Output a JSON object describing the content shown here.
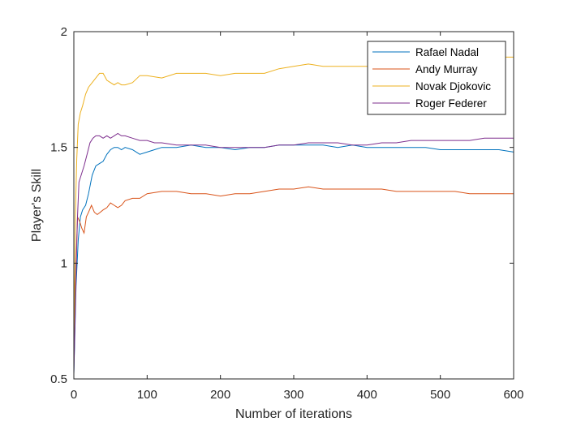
{
  "chart_data": {
    "type": "line",
    "title": "",
    "xlabel": "Number of iterations",
    "ylabel": "Player's Skill",
    "xlim": [
      0,
      600
    ],
    "ylim": [
      0.5,
      2
    ],
    "xticks": [
      0,
      100,
      200,
      300,
      400,
      500,
      600
    ],
    "xtick_labels": [
      "0",
      "100",
      "200",
      "300",
      "400",
      "500",
      "600"
    ],
    "yticks": [
      0.5,
      1,
      1.5,
      2
    ],
    "ytick_labels": [
      "0.5",
      "1",
      "1.5",
      "2"
    ],
    "grid": false,
    "legend_position": "top-right",
    "series": [
      {
        "name": "Rafael Nadal",
        "color": "#0072BD",
        "points": [
          [
            0,
            0.52
          ],
          [
            3,
            0.9
          ],
          [
            6,
            1.1
          ],
          [
            9,
            1.2
          ],
          [
            12,
            1.23
          ],
          [
            16,
            1.25
          ],
          [
            20,
            1.3
          ],
          [
            25,
            1.38
          ],
          [
            30,
            1.42
          ],
          [
            35,
            1.43
          ],
          [
            40,
            1.44
          ],
          [
            45,
            1.47
          ],
          [
            50,
            1.49
          ],
          [
            55,
            1.5
          ],
          [
            60,
            1.5
          ],
          [
            65,
            1.49
          ],
          [
            70,
            1.5
          ],
          [
            80,
            1.49
          ],
          [
            90,
            1.47
          ],
          [
            100,
            1.48
          ],
          [
            110,
            1.49
          ],
          [
            120,
            1.5
          ],
          [
            140,
            1.5
          ],
          [
            160,
            1.51
          ],
          [
            180,
            1.5
          ],
          [
            200,
            1.5
          ],
          [
            220,
            1.49
          ],
          [
            240,
            1.5
          ],
          [
            260,
            1.5
          ],
          [
            280,
            1.51
          ],
          [
            300,
            1.51
          ],
          [
            320,
            1.51
          ],
          [
            340,
            1.51
          ],
          [
            360,
            1.5
          ],
          [
            380,
            1.51
          ],
          [
            400,
            1.5
          ],
          [
            420,
            1.5
          ],
          [
            440,
            1.5
          ],
          [
            460,
            1.5
          ],
          [
            480,
            1.5
          ],
          [
            500,
            1.49
          ],
          [
            520,
            1.49
          ],
          [
            540,
            1.49
          ],
          [
            560,
            1.49
          ],
          [
            580,
            1.49
          ],
          [
            600,
            1.48
          ]
        ]
      },
      {
        "name": "Andy Murray",
        "color": "#D95319",
        "points": [
          [
            0,
            0.6
          ],
          [
            3,
            1.0
          ],
          [
            5,
            1.2
          ],
          [
            8,
            1.18
          ],
          [
            11,
            1.15
          ],
          [
            14,
            1.13
          ],
          [
            17,
            1.2
          ],
          [
            20,
            1.22
          ],
          [
            24,
            1.25
          ],
          [
            28,
            1.22
          ],
          [
            32,
            1.21
          ],
          [
            36,
            1.22
          ],
          [
            40,
            1.23
          ],
          [
            45,
            1.24
          ],
          [
            50,
            1.26
          ],
          [
            55,
            1.25
          ],
          [
            60,
            1.24
          ],
          [
            65,
            1.25
          ],
          [
            70,
            1.27
          ],
          [
            80,
            1.28
          ],
          [
            90,
            1.28
          ],
          [
            100,
            1.3
          ],
          [
            120,
            1.31
          ],
          [
            140,
            1.31
          ],
          [
            160,
            1.3
          ],
          [
            180,
            1.3
          ],
          [
            200,
            1.29
          ],
          [
            220,
            1.3
          ],
          [
            240,
            1.3
          ],
          [
            260,
            1.31
          ],
          [
            280,
            1.32
          ],
          [
            300,
            1.32
          ],
          [
            320,
            1.33
          ],
          [
            340,
            1.32
          ],
          [
            360,
            1.32
          ],
          [
            380,
            1.32
          ],
          [
            400,
            1.32
          ],
          [
            420,
            1.32
          ],
          [
            440,
            1.31
          ],
          [
            460,
            1.31
          ],
          [
            480,
            1.31
          ],
          [
            500,
            1.31
          ],
          [
            520,
            1.31
          ],
          [
            540,
            1.3
          ],
          [
            560,
            1.3
          ],
          [
            580,
            1.3
          ],
          [
            600,
            1.3
          ]
        ]
      },
      {
        "name": "Novak Djokovic",
        "color": "#EDB120",
        "points": [
          [
            0,
            0.55
          ],
          [
            2,
            1.2
          ],
          [
            4,
            1.45
          ],
          [
            6,
            1.6
          ],
          [
            9,
            1.65
          ],
          [
            12,
            1.68
          ],
          [
            16,
            1.73
          ],
          [
            20,
            1.76
          ],
          [
            25,
            1.78
          ],
          [
            30,
            1.8
          ],
          [
            35,
            1.82
          ],
          [
            40,
            1.82
          ],
          [
            45,
            1.79
          ],
          [
            50,
            1.78
          ],
          [
            55,
            1.77
          ],
          [
            60,
            1.78
          ],
          [
            65,
            1.77
          ],
          [
            70,
            1.77
          ],
          [
            80,
            1.78
          ],
          [
            90,
            1.81
          ],
          [
            100,
            1.81
          ],
          [
            120,
            1.8
          ],
          [
            140,
            1.82
          ],
          [
            160,
            1.82
          ],
          [
            180,
            1.82
          ],
          [
            200,
            1.81
          ],
          [
            220,
            1.82
          ],
          [
            240,
            1.82
          ],
          [
            260,
            1.82
          ],
          [
            280,
            1.84
          ],
          [
            300,
            1.85
          ],
          [
            320,
            1.86
          ],
          [
            340,
            1.85
          ],
          [
            360,
            1.85
          ],
          [
            380,
            1.85
          ],
          [
            400,
            1.85
          ],
          [
            420,
            1.84
          ],
          [
            440,
            1.86
          ],
          [
            460,
            1.87
          ],
          [
            480,
            1.88
          ],
          [
            500,
            1.88
          ],
          [
            520,
            1.89
          ],
          [
            540,
            1.89
          ],
          [
            560,
            1.89
          ],
          [
            580,
            1.89
          ],
          [
            600,
            1.89
          ]
        ]
      },
      {
        "name": "Roger Federer",
        "color": "#7E2F8E",
        "points": [
          [
            0,
            0.52
          ],
          [
            3,
            0.95
          ],
          [
            5,
            1.2
          ],
          [
            7,
            1.35
          ],
          [
            10,
            1.38
          ],
          [
            14,
            1.42
          ],
          [
            18,
            1.47
          ],
          [
            22,
            1.52
          ],
          [
            26,
            1.54
          ],
          [
            30,
            1.55
          ],
          [
            35,
            1.55
          ],
          [
            40,
            1.54
          ],
          [
            45,
            1.55
          ],
          [
            50,
            1.54
          ],
          [
            55,
            1.55
          ],
          [
            60,
            1.56
          ],
          [
            65,
            1.55
          ],
          [
            70,
            1.55
          ],
          [
            80,
            1.54
          ],
          [
            90,
            1.53
          ],
          [
            100,
            1.53
          ],
          [
            110,
            1.52
          ],
          [
            120,
            1.52
          ],
          [
            140,
            1.51
          ],
          [
            160,
            1.51
          ],
          [
            180,
            1.51
          ],
          [
            200,
            1.5
          ],
          [
            220,
            1.5
          ],
          [
            240,
            1.5
          ],
          [
            260,
            1.5
          ],
          [
            280,
            1.51
          ],
          [
            300,
            1.51
          ],
          [
            320,
            1.52
          ],
          [
            340,
            1.52
          ],
          [
            360,
            1.52
          ],
          [
            380,
            1.51
          ],
          [
            400,
            1.51
          ],
          [
            420,
            1.52
          ],
          [
            440,
            1.52
          ],
          [
            460,
            1.53
          ],
          [
            480,
            1.53
          ],
          [
            500,
            1.53
          ],
          [
            520,
            1.53
          ],
          [
            540,
            1.53
          ],
          [
            560,
            1.54
          ],
          [
            580,
            1.54
          ],
          [
            600,
            1.54
          ]
        ]
      }
    ]
  }
}
